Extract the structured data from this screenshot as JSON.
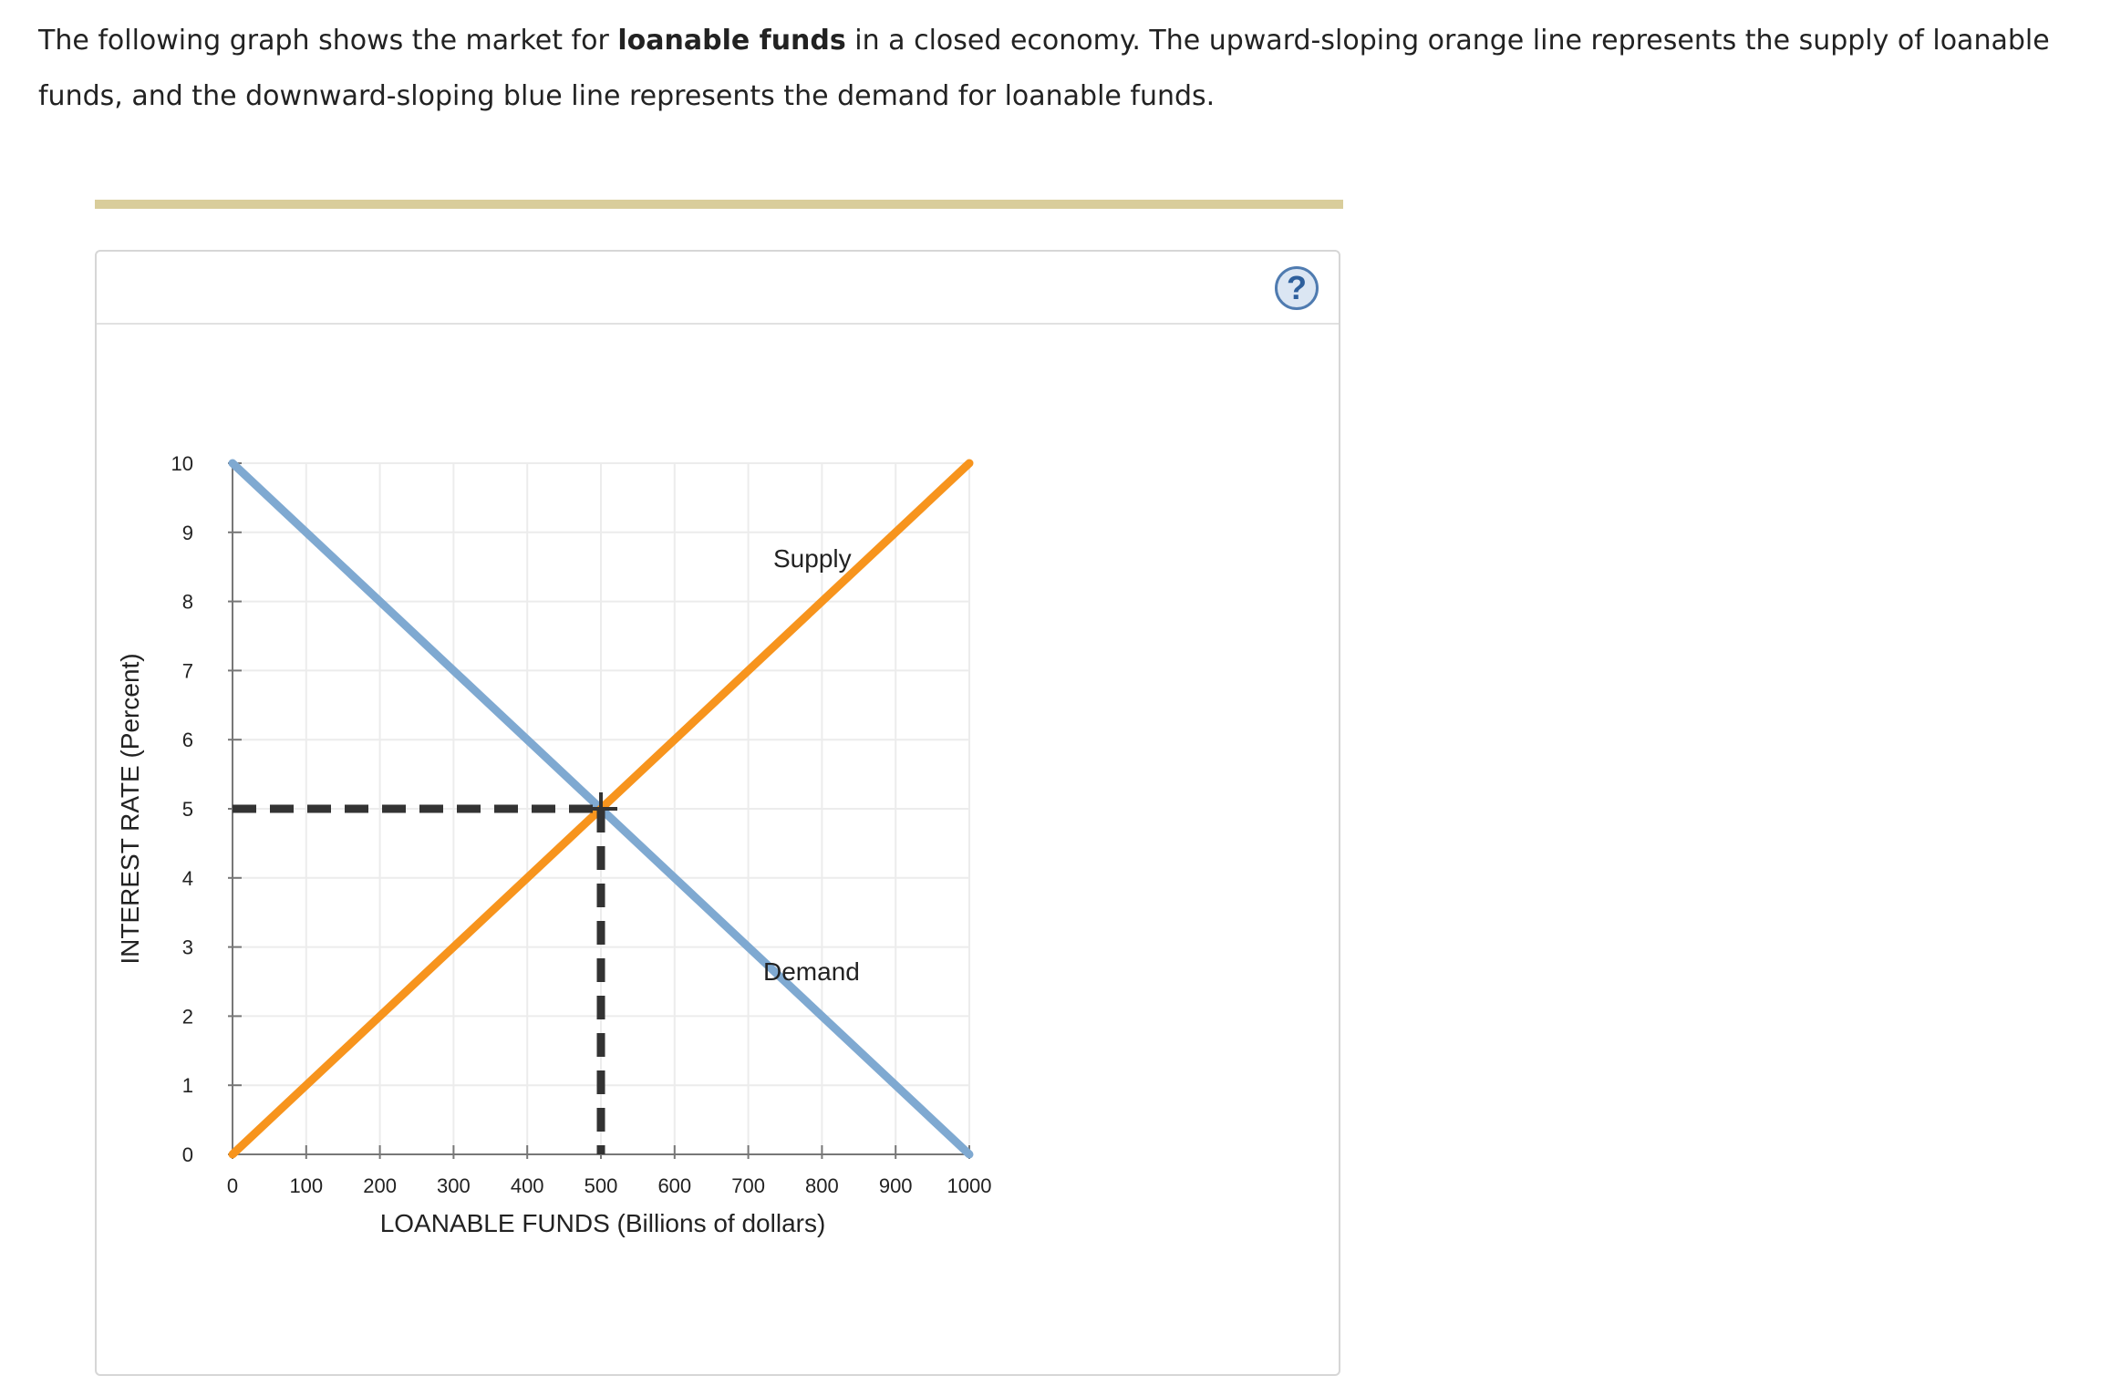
{
  "intro": {
    "part1": "The following graph shows the market for ",
    "bold": "loanable funds",
    "part2": " in a closed economy. The upward-sloping orange line represents the supply of loanable funds, and the downward-sloping blue line represents the demand for loanable funds."
  },
  "help_button": {
    "label": "?",
    "icon": "question-mark-icon"
  },
  "chart_data": {
    "type": "line",
    "xlabel": "LOANABLE FUNDS (Billions of dollars)",
    "ylabel": "INTEREST RATE (Percent)",
    "xlim": [
      0,
      1000
    ],
    "ylim": [
      0,
      10
    ],
    "x_ticks": [
      0,
      100,
      200,
      300,
      400,
      500,
      600,
      700,
      800,
      900,
      1000
    ],
    "y_ticks": [
      0,
      1,
      2,
      3,
      4,
      5,
      6,
      7,
      8,
      9,
      10
    ],
    "grid": true,
    "series": [
      {
        "name": "Supply",
        "color": "#f7941d",
        "x": [
          0,
          1000
        ],
        "y": [
          0,
          10
        ]
      },
      {
        "name": "Demand",
        "color": "#7fa9d1",
        "x": [
          0,
          1000
        ],
        "y": [
          10,
          0
        ]
      }
    ],
    "equilibrium": {
      "x": 500,
      "y": 5
    }
  }
}
